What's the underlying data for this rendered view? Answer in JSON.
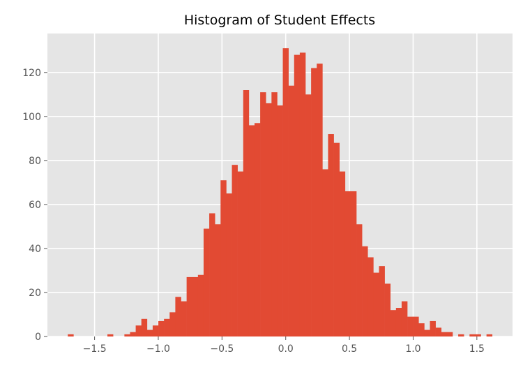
{
  "chart_data": {
    "type": "bar",
    "title": "Histogram of Student Effects",
    "xlabel": "",
    "ylabel": "",
    "bin_range": [
      -1.71,
      1.62
    ],
    "bin_count": 75,
    "counts": [
      1,
      0,
      0,
      0,
      0,
      0,
      0,
      1,
      0,
      0,
      1,
      2,
      5,
      8,
      3,
      5,
      7,
      8,
      11,
      18,
      16,
      27,
      27,
      28,
      49,
      56,
      51,
      71,
      65,
      78,
      75,
      112,
      96,
      97,
      111,
      106,
      111,
      105,
      131,
      114,
      128,
      129,
      110,
      122,
      124,
      76,
      92,
      88,
      75,
      66,
      66,
      51,
      41,
      36,
      29,
      32,
      24,
      12,
      13,
      16,
      9,
      9,
      6,
      3,
      7,
      4,
      2,
      2,
      0,
      1,
      0,
      1,
      1,
      0,
      1
    ],
    "xlim": [
      -1.87,
      1.78
    ],
    "ylim": [
      0,
      137.7
    ],
    "x_ticks": [
      -1.5,
      -1.0,
      -0.5,
      0.0,
      0.5,
      1.0,
      1.5
    ],
    "x_tick_labels": [
      "−1.5",
      "−1.0",
      "−0.5",
      "0.0",
      "0.5",
      "1.0",
      "1.5"
    ],
    "y_ticks": [
      0,
      20,
      40,
      60,
      80,
      100,
      120
    ],
    "y_tick_labels": [
      "0",
      "20",
      "40",
      "60",
      "80",
      "100",
      "120"
    ],
    "grid": true,
    "style": "ggplot",
    "colors": {
      "bar": "#E24A33",
      "background": "#E5E5E5",
      "grid": "#FFFFFF"
    }
  }
}
